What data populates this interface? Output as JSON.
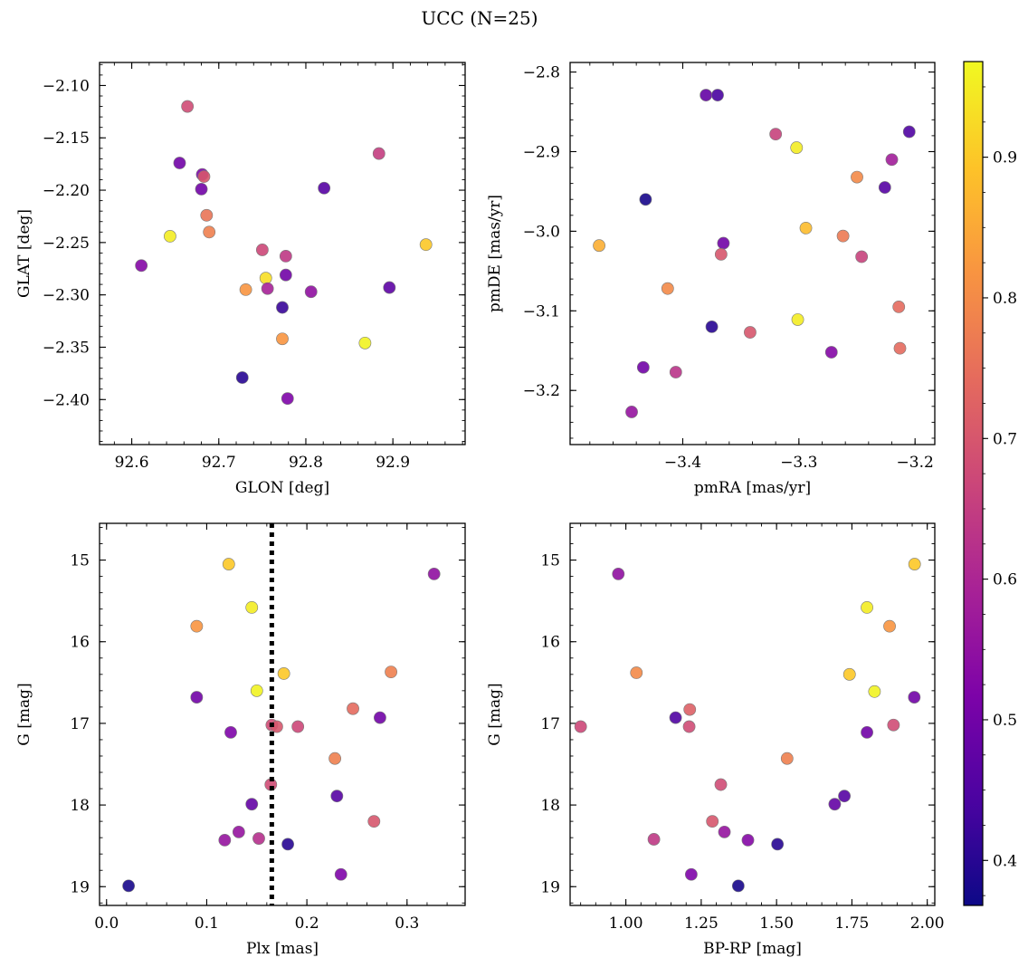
{
  "title": "UCC (N=25)",
  "chart_data": [
    {
      "type": "scatter",
      "xlabel": "GLON [deg]",
      "ylabel": "GLAT [deg]",
      "xlim": [
        92.563,
        92.983
      ],
      "ylim": [
        -2.443,
        -2.078
      ],
      "y_inverted": false,
      "xticks": [
        92.6,
        92.7,
        92.8,
        92.9
      ],
      "xtick_labels": [
        "92.6",
        "92.7",
        "92.8",
        "92.9"
      ],
      "yticks": [
        -2.1,
        -2.15,
        -2.2,
        -2.25,
        -2.3,
        -2.35,
        -2.4
      ],
      "ytick_labels": [
        "−2.10",
        "−2.15",
        "−2.20",
        "−2.25",
        "−2.30",
        "−2.35",
        "−2.40"
      ],
      "points": [
        {
          "x": 92.664,
          "y": -2.12,
          "c": 0.68
        },
        {
          "x": 92.655,
          "y": -2.174,
          "c": 0.5
        },
        {
          "x": 92.681,
          "y": -2.185,
          "c": 0.52
        },
        {
          "x": 92.683,
          "y": -2.187,
          "c": 0.7
        },
        {
          "x": 92.68,
          "y": -2.199,
          "c": 0.5
        },
        {
          "x": 92.686,
          "y": -2.224,
          "c": 0.76
        },
        {
          "x": 92.689,
          "y": -2.24,
          "c": 0.78
        },
        {
          "x": 92.644,
          "y": -2.244,
          "c": 0.95
        },
        {
          "x": 92.611,
          "y": -2.272,
          "c": 0.53
        },
        {
          "x": 92.884,
          "y": -2.165,
          "c": 0.65
        },
        {
          "x": 92.821,
          "y": -2.198,
          "c": 0.46
        },
        {
          "x": 92.938,
          "y": -2.252,
          "c": 0.9
        },
        {
          "x": 92.75,
          "y": -2.257,
          "c": 0.67
        },
        {
          "x": 92.777,
          "y": -2.263,
          "c": 0.64
        },
        {
          "x": 92.754,
          "y": -2.284,
          "c": 0.93
        },
        {
          "x": 92.777,
          "y": -2.281,
          "c": 0.5
        },
        {
          "x": 92.731,
          "y": -2.295,
          "c": 0.82
        },
        {
          "x": 92.756,
          "y": -2.294,
          "c": 0.59
        },
        {
          "x": 92.806,
          "y": -2.297,
          "c": 0.55
        },
        {
          "x": 92.896,
          "y": -2.293,
          "c": 0.47
        },
        {
          "x": 92.773,
          "y": -2.312,
          "c": 0.42
        },
        {
          "x": 92.773,
          "y": -2.342,
          "c": 0.82
        },
        {
          "x": 92.868,
          "y": -2.346,
          "c": 0.96
        },
        {
          "x": 92.727,
          "y": -2.379,
          "c": 0.4
        },
        {
          "x": 92.779,
          "y": -2.399,
          "c": 0.52
        }
      ]
    },
    {
      "type": "scatter",
      "xlabel": "pmRA [mas/yr]",
      "ylabel": "pmDE [mas/yr]",
      "xlim": [
        -3.497,
        -3.183
      ],
      "ylim": [
        -3.268,
        -2.788
      ],
      "y_inverted": false,
      "xticks": [
        -3.4,
        -3.3,
        -3.2
      ],
      "xtick_labels": [
        "−3.4",
        "−3.3",
        "−3.2"
      ],
      "yticks": [
        -2.8,
        -2.9,
        -3.0,
        -3.1,
        -3.2
      ],
      "ytick_labels": [
        "−2.8",
        "−2.9",
        "−3.0",
        "−3.1",
        "−3.2"
      ],
      "points": [
        {
          "x": -3.38,
          "y": -2.829,
          "c": 0.48
        },
        {
          "x": -3.37,
          "y": -2.829,
          "c": 0.44
        },
        {
          "x": -3.32,
          "y": -2.878,
          "c": 0.66
        },
        {
          "x": -3.302,
          "y": -2.895,
          "c": 0.95
        },
        {
          "x": -3.205,
          "y": -2.875,
          "c": 0.45
        },
        {
          "x": -3.22,
          "y": -2.91,
          "c": 0.58
        },
        {
          "x": -3.25,
          "y": -2.932,
          "c": 0.8
        },
        {
          "x": -3.226,
          "y": -2.945,
          "c": 0.46
        },
        {
          "x": -3.432,
          "y": -2.96,
          "c": 0.38
        },
        {
          "x": -3.472,
          "y": -3.018,
          "c": 0.86
        },
        {
          "x": -3.294,
          "y": -2.996,
          "c": 0.88
        },
        {
          "x": -3.262,
          "y": -3.006,
          "c": 0.77
        },
        {
          "x": -3.365,
          "y": -3.015,
          "c": 0.5
        },
        {
          "x": -3.367,
          "y": -3.029,
          "c": 0.7
        },
        {
          "x": -3.246,
          "y": -3.032,
          "c": 0.66
        },
        {
          "x": -3.413,
          "y": -3.072,
          "c": 0.8
        },
        {
          "x": -3.214,
          "y": -3.095,
          "c": 0.74
        },
        {
          "x": -3.301,
          "y": -3.111,
          "c": 0.95
        },
        {
          "x": -3.375,
          "y": -3.12,
          "c": 0.4
        },
        {
          "x": -3.342,
          "y": -3.127,
          "c": 0.7
        },
        {
          "x": -3.213,
          "y": -3.147,
          "c": 0.74
        },
        {
          "x": -3.272,
          "y": -3.152,
          "c": 0.53
        },
        {
          "x": -3.434,
          "y": -3.171,
          "c": 0.5
        },
        {
          "x": -3.406,
          "y": -3.177,
          "c": 0.63
        },
        {
          "x": -3.444,
          "y": -3.227,
          "c": 0.56
        }
      ]
    },
    {
      "type": "scatter",
      "xlabel": "Plx [mas]",
      "ylabel": "G [mag]",
      "xlim": [
        -0.007,
        0.358
      ],
      "ylim": [
        19.23,
        14.55
      ],
      "y_inverted": true,
      "vline": 0.165,
      "xticks": [
        0.0,
        0.1,
        0.2,
        0.3
      ],
      "xtick_labels": [
        "0.0",
        "0.1",
        "0.2",
        "0.3"
      ],
      "yticks": [
        15,
        16,
        17,
        18,
        19
      ],
      "ytick_labels": [
        "15",
        "16",
        "17",
        "18",
        "19"
      ],
      "points": [
        {
          "x": 0.122,
          "y": 15.05,
          "c": 0.9
        },
        {
          "x": 0.327,
          "y": 15.17,
          "c": 0.55
        },
        {
          "x": 0.145,
          "y": 15.58,
          "c": 0.95
        },
        {
          "x": 0.09,
          "y": 15.81,
          "c": 0.82
        },
        {
          "x": 0.177,
          "y": 16.39,
          "c": 0.9
        },
        {
          "x": 0.284,
          "y": 16.37,
          "c": 0.78
        },
        {
          "x": 0.15,
          "y": 16.6,
          "c": 0.96
        },
        {
          "x": 0.09,
          "y": 16.68,
          "c": 0.5
        },
        {
          "x": 0.246,
          "y": 16.82,
          "c": 0.74
        },
        {
          "x": 0.273,
          "y": 16.93,
          "c": 0.5
        },
        {
          "x": 0.124,
          "y": 17.11,
          "c": 0.52
        },
        {
          "x": 0.165,
          "y": 17.02,
          "c": 0.68
        },
        {
          "x": 0.17,
          "y": 17.04,
          "c": 0.7
        },
        {
          "x": 0.191,
          "y": 17.04,
          "c": 0.67
        },
        {
          "x": 0.228,
          "y": 17.43,
          "c": 0.78
        },
        {
          "x": 0.164,
          "y": 17.75,
          "c": 0.68
        },
        {
          "x": 0.23,
          "y": 17.89,
          "c": 0.46
        },
        {
          "x": 0.145,
          "y": 17.99,
          "c": 0.48
        },
        {
          "x": 0.267,
          "y": 18.2,
          "c": 0.7
        },
        {
          "x": 0.132,
          "y": 18.33,
          "c": 0.56
        },
        {
          "x": 0.118,
          "y": 18.43,
          "c": 0.56
        },
        {
          "x": 0.152,
          "y": 18.41,
          "c": 0.62
        },
        {
          "x": 0.181,
          "y": 18.48,
          "c": 0.4
        },
        {
          "x": 0.234,
          "y": 18.85,
          "c": 0.52
        },
        {
          "x": 0.022,
          "y": 18.99,
          "c": 0.38
        }
      ]
    },
    {
      "type": "scatter",
      "xlabel": "BP-RP [mag]",
      "ylabel": "G [mag]",
      "xlim": [
        0.815,
        2.025
      ],
      "ylim": [
        19.23,
        14.55
      ],
      "y_inverted": true,
      "xticks": [
        1.0,
        1.25,
        1.5,
        1.75,
        2.0
      ],
      "xtick_labels": [
        "1.00",
        "1.25",
        "1.50",
        "1.75",
        "2.00"
      ],
      "yticks": [
        15,
        16,
        17,
        18,
        19
      ],
      "ytick_labels": [
        "15",
        "16",
        "17",
        "18",
        "19"
      ],
      "points": [
        {
          "x": 1.958,
          "y": 15.05,
          "c": 0.9
        },
        {
          "x": 0.975,
          "y": 15.17,
          "c": 0.55
        },
        {
          "x": 1.8,
          "y": 15.58,
          "c": 0.95
        },
        {
          "x": 1.875,
          "y": 15.81,
          "c": 0.82
        },
        {
          "x": 1.035,
          "y": 16.38,
          "c": 0.8
        },
        {
          "x": 1.742,
          "y": 16.4,
          "c": 0.9
        },
        {
          "x": 1.825,
          "y": 16.61,
          "c": 0.96
        },
        {
          "x": 1.957,
          "y": 16.68,
          "c": 0.5
        },
        {
          "x": 1.212,
          "y": 16.83,
          "c": 0.72
        },
        {
          "x": 1.165,
          "y": 16.93,
          "c": 0.45
        },
        {
          "x": 0.85,
          "y": 17.04,
          "c": 0.67
        },
        {
          "x": 1.21,
          "y": 17.04,
          "c": 0.68
        },
        {
          "x": 1.888,
          "y": 17.02,
          "c": 0.68
        },
        {
          "x": 1.8,
          "y": 17.11,
          "c": 0.5
        },
        {
          "x": 1.535,
          "y": 17.43,
          "c": 0.78
        },
        {
          "x": 1.315,
          "y": 17.75,
          "c": 0.68
        },
        {
          "x": 1.725,
          "y": 17.89,
          "c": 0.46
        },
        {
          "x": 1.693,
          "y": 17.99,
          "c": 0.48
        },
        {
          "x": 1.287,
          "y": 18.2,
          "c": 0.7
        },
        {
          "x": 1.327,
          "y": 18.33,
          "c": 0.56
        },
        {
          "x": 1.093,
          "y": 18.42,
          "c": 0.64
        },
        {
          "x": 1.405,
          "y": 18.43,
          "c": 0.53
        },
        {
          "x": 1.503,
          "y": 18.48,
          "c": 0.4
        },
        {
          "x": 1.217,
          "y": 18.85,
          "c": 0.52
        },
        {
          "x": 1.373,
          "y": 18.99,
          "c": 0.38
        }
      ]
    }
  ],
  "colorbar": {
    "colormap": "plasma",
    "range": [
      0.368,
      0.968
    ],
    "ticks": [
      0.4,
      0.5,
      0.6,
      0.7,
      0.8,
      0.9
    ],
    "tick_labels": [
      "0.4",
      "0.5",
      "0.6",
      "0.7",
      "0.8",
      "0.9"
    ]
  }
}
